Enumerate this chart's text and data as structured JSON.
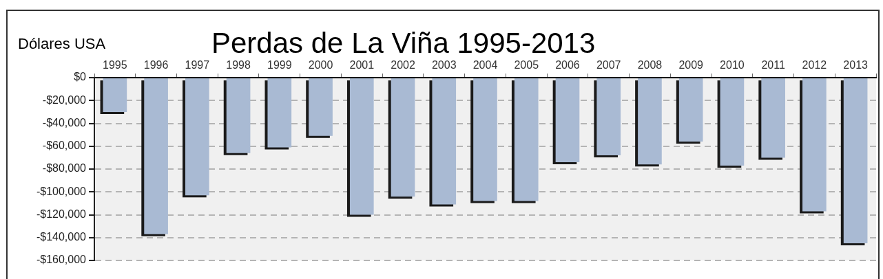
{
  "chart_data": {
    "type": "bar",
    "title": "Perdas de La Viña 1995-2013",
    "ylabel": "Dólares USA",
    "categories": [
      "1995",
      "1996",
      "1997",
      "1998",
      "1999",
      "2000",
      "2001",
      "2002",
      "2003",
      "2004",
      "2005",
      "2006",
      "2007",
      "2008",
      "2009",
      "2010",
      "2011",
      "2012",
      "2013"
    ],
    "values": [
      -30000,
      -137000,
      -103000,
      -66000,
      -61000,
      -51000,
      -120000,
      -104000,
      -111000,
      -108000,
      -108000,
      -74000,
      -68000,
      -76000,
      -56000,
      -77000,
      -70000,
      -117000,
      -145000
    ],
    "color": "#a9bad3",
    "ylim": [
      -160000,
      0
    ],
    "yticks": [
      {
        "value": 0,
        "label": "$0"
      },
      {
        "value": -20000,
        "label": "-$20,000"
      },
      {
        "value": -40000,
        "label": "-$40,000"
      },
      {
        "value": -60000,
        "label": "-$60,000"
      },
      {
        "value": -80000,
        "label": "-$80,000"
      },
      {
        "value": -100000,
        "label": "-$100,000"
      },
      {
        "value": -120000,
        "label": "-$120,000"
      },
      {
        "value": -140000,
        "label": "-$140,000"
      },
      {
        "value": -160000,
        "label": "-$160,000"
      }
    ],
    "grid": "y"
  }
}
